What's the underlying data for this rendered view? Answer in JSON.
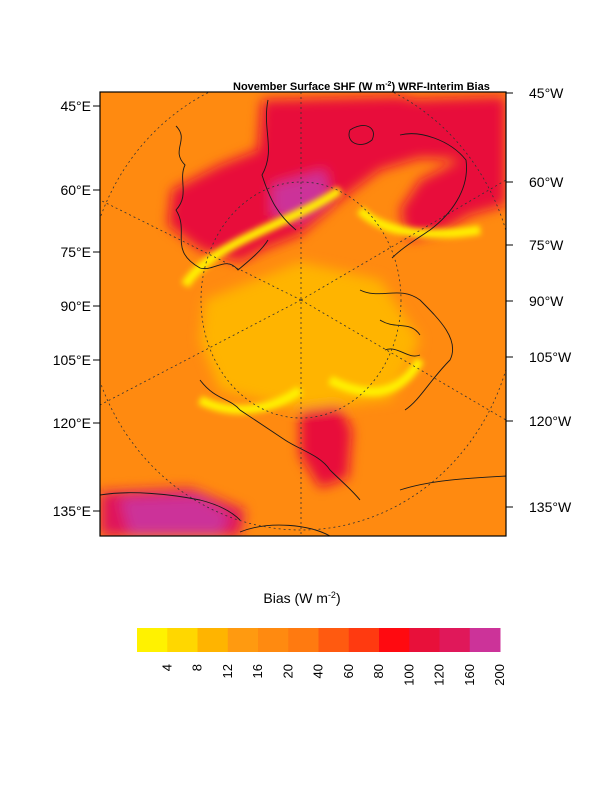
{
  "chart_data": {
    "type": "heatmap",
    "title_main": "November Surface SHF (W m",
    "title_sup": "-2",
    "title_tail": ") WRF-Interim Bias",
    "left_labels": [
      "45°E",
      "60°E",
      "75°E",
      "90°E",
      "105°E",
      "120°E",
      "135°E"
    ],
    "right_labels": [
      "45°W",
      "60°W",
      "75°W",
      "90°W",
      "105°W",
      "120°W",
      "135°W"
    ],
    "colorbar": {
      "label_main": "Bias (W m",
      "label_sup": "-2",
      "label_tail": ")",
      "levels": [
        "4",
        "8",
        "12",
        "16",
        "20",
        "40",
        "60",
        "80",
        "100",
        "120",
        "160",
        "200"
      ],
      "colors": [
        "#FFF200",
        "#FFD700",
        "#FFB400",
        "#FF9A10",
        "#FF8A10",
        "#FF7A10",
        "#FF5A10",
        "#FF3A10",
        "#FF0A10",
        "#E8103A",
        "#E0185A",
        "#CC3399"
      ]
    },
    "field": {
      "background_color": "#FF8A10",
      "regions": [
        {
          "name": "greenland-high-bias",
          "color": "#E8103A"
        },
        {
          "name": "greenland-peak",
          "color": "#CC3399"
        },
        {
          "name": "scandinavia-high-bias",
          "color": "#E8103A"
        },
        {
          "name": "alaska-high-bias",
          "color": "#E0185A"
        },
        {
          "name": "alaska-peak",
          "color": "#CC3399"
        },
        {
          "name": "canada-high-bias",
          "color": "#E8103A"
        },
        {
          "name": "ice-edge-low-bias",
          "color": "#FFF200"
        },
        {
          "name": "central-arctic",
          "color": "#FFB400"
        }
      ]
    }
  }
}
